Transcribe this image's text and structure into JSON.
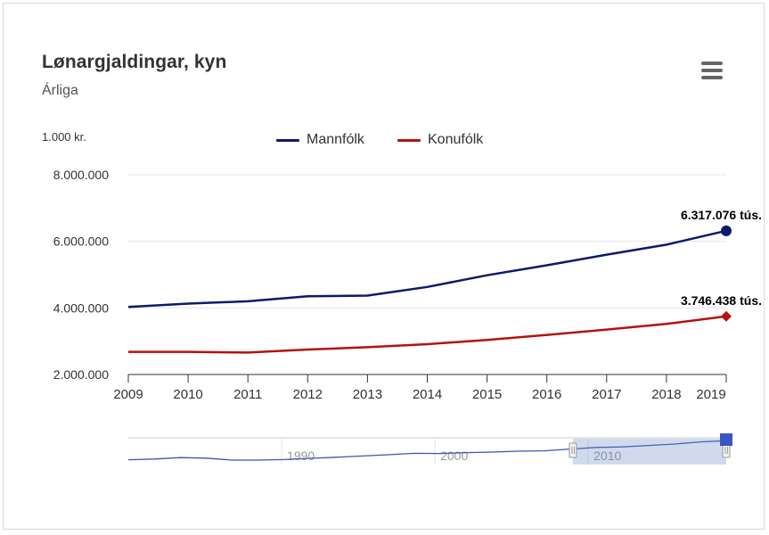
{
  "chart_data": {
    "type": "line",
    "title": "Lønargjaldingar, kyn",
    "subtitle": "Árliga",
    "unit_label": "1.000 kr.",
    "x": [
      2009,
      2010,
      2011,
      2012,
      2013,
      2014,
      2015,
      2016,
      2017,
      2018,
      2019
    ],
    "y_ticks": [
      "2.000.000",
      "4.000.000",
      "6.000.000",
      "8.000.000"
    ],
    "ylim": [
      2000000,
      8000000
    ],
    "grid": true,
    "legend_position": "top-center",
    "series": [
      {
        "name": "Mannfólk",
        "color": "#0d1a6b",
        "values": [
          4030000,
          4130000,
          4200000,
          4350000,
          4370000,
          4630000,
          4980000,
          5280000,
          5600000,
          5900000,
          6317076
        ],
        "end_label": "6.317.076 tús.",
        "marker": "circle"
      },
      {
        "name": "Konufólk",
        "color": "#b3120f",
        "values": [
          2680000,
          2680000,
          2660000,
          2750000,
          2820000,
          2910000,
          3040000,
          3190000,
          3350000,
          3520000,
          3746438
        ],
        "end_label": "3.746.438 tús.",
        "marker": "diamond"
      }
    ],
    "navigator": {
      "labels": [
        "1990",
        "2000",
        "2010"
      ],
      "range_start": 1980,
      "range_end": 2019,
      "selected_start": 2009,
      "selected_end": 2019,
      "values": [
        1920000,
        1960000,
        2040000,
        2010000,
        1900000,
        1900000,
        1930000,
        2000000,
        2060000,
        2130000,
        2200000,
        2280000,
        2270000,
        2320000,
        2350000,
        2400000,
        2420000,
        2520000,
        2610000,
        2640000,
        2720000,
        2800000,
        2920000,
        2990000
      ]
    }
  }
}
